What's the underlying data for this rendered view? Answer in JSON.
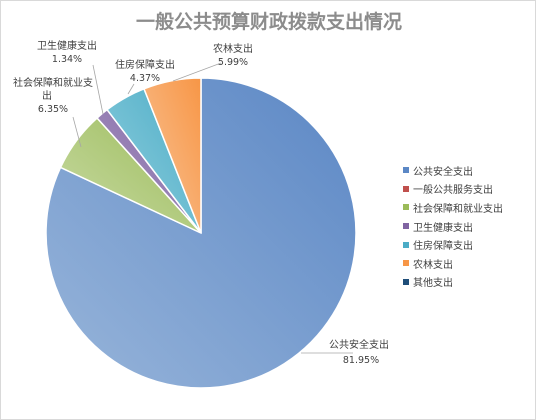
{
  "chart_data": {
    "type": "pie",
    "title": "一般公共预算财政拨款支出情况",
    "slices": [
      {
        "name": "公共安全支出",
        "value": 81.95,
        "label": "81.95%",
        "color": "#5b87c5",
        "color_light": "#98b5da"
      },
      {
        "name": "一般公共服务支出",
        "value": 0.0,
        "label": "",
        "color": "#c0504d",
        "color_light": "#d98a88"
      },
      {
        "name": "社会保障和就业支出",
        "value": 6.35,
        "label": "6.35%",
        "color": "#9bbb59",
        "color_light": "#c9dba5"
      },
      {
        "name": "卫生健康支出",
        "value": 1.34,
        "label": "1.34%",
        "color": "#8064a2",
        "color_light": "#ad9bc6"
      },
      {
        "name": "住房保障支出",
        "value": 4.37,
        "label": "4.37%",
        "color": "#4bacc6",
        "color_light": "#93d0df"
      },
      {
        "name": "农林支出",
        "value": 5.99,
        "label": "5.99%",
        "color": "#f79646",
        "color_light": "#fac59a"
      },
      {
        "name": "其他支出",
        "value": 0.0,
        "label": "",
        "color": "#1f4e79",
        "color_light": "#4a7aa8"
      }
    ],
    "legend_position": "right"
  }
}
